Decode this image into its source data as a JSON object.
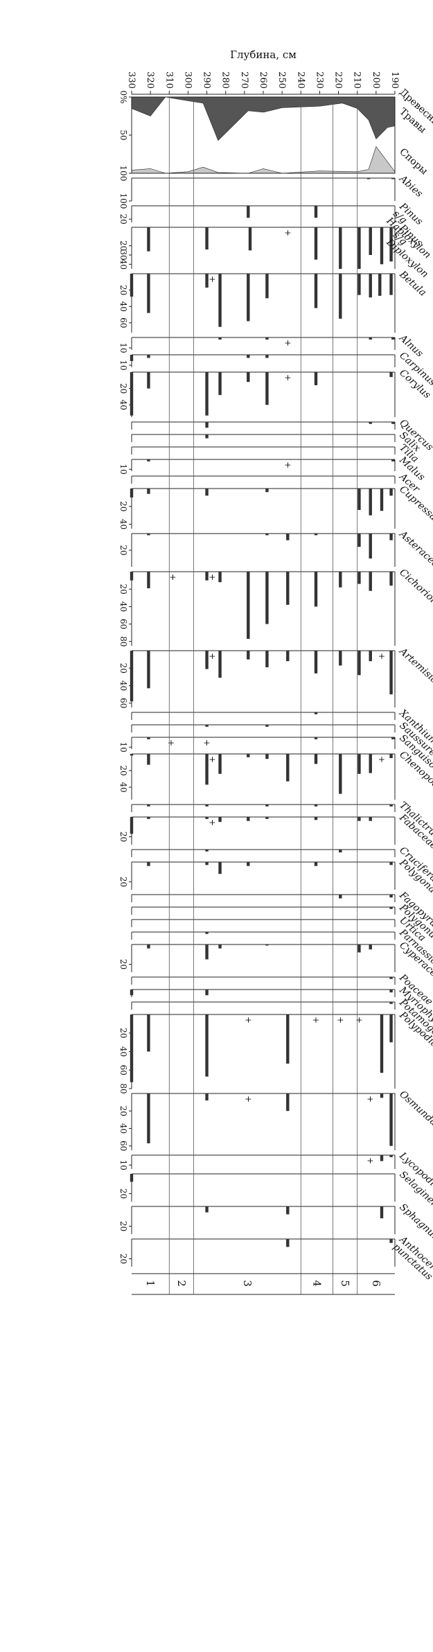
{
  "chart_data": {
    "type": "bar",
    "orientation": "depth-up-rotated",
    "ylabel": "Глубина, см",
    "depth_range": [
      190,
      330
    ],
    "depth_ticks": [
      190,
      200,
      210,
      220,
      230,
      240,
      250,
      260,
      270,
      280,
      290,
      300,
      310,
      320,
      330
    ],
    "zones": [
      {
        "label": "6",
        "from": 190,
        "to": 210
      },
      {
        "label": "5",
        "from": 210,
        "to": 223
      },
      {
        "label": "4",
        "from": 223,
        "to": 240
      },
      {
        "label": "3",
        "from": 240,
        "to": 297
      },
      {
        "label": "2",
        "from": 297,
        "to": 310
      },
      {
        "label": "1",
        "from": 310,
        "to": 330
      }
    ],
    "summary": {
      "labels": [
        "Древесные",
        "Травы",
        "Споры"
      ],
      "ticks": [
        "0%",
        "50",
        "100"
      ],
      "trees_boundary": [
        [
          190,
          38
        ],
        [
          194,
          40
        ],
        [
          200,
          55
        ],
        [
          204,
          30
        ],
        [
          210,
          15
        ],
        [
          218,
          8
        ],
        [
          230,
          12
        ],
        [
          250,
          14
        ],
        [
          260,
          20
        ],
        [
          268,
          18
        ],
        [
          284,
          57
        ],
        [
          292,
          8
        ],
        [
          300,
          5
        ],
        [
          312,
          0
        ],
        [
          320,
          25
        ],
        [
          330,
          15
        ]
      ],
      "herbs_boundary": [
        [
          190,
          98
        ],
        [
          200,
          65
        ],
        [
          204,
          95
        ],
        [
          210,
          98
        ],
        [
          230,
          97
        ],
        [
          250,
          100
        ],
        [
          260,
          94
        ],
        [
          268,
          100
        ],
        [
          284,
          99
        ],
        [
          292,
          92
        ],
        [
          300,
          98
        ],
        [
          312,
          100
        ],
        [
          320,
          94
        ],
        [
          330,
          96
        ]
      ]
    },
    "taxa": [
      {
        "name": "Abies",
        "max": 100,
        "ticks": [
          100
        ],
        "width": 33,
        "values": [
          [
            191,
            4
          ],
          [
            204,
            4
          ]
        ]
      },
      {
        "name": "Pinus s/g Haploxylon",
        "max": 25,
        "ticks": [
          20
        ],
        "width": 24,
        "values": [
          [
            232,
            18
          ],
          [
            268,
            18
          ]
        ]
      },
      {
        "name": "Pinus s/g Diploxylon",
        "max": 45,
        "ticks": [
          20,
          30,
          40
        ],
        "width": 60,
        "values": [
          [
            192,
            37
          ],
          [
            197,
            40
          ],
          [
            203,
            30
          ],
          [
            209,
            45
          ],
          [
            219,
            45
          ],
          [
            232,
            35
          ],
          [
            267,
            25
          ],
          [
            290,
            24
          ],
          [
            321,
            26
          ]
        ],
        "plus": [
          247
        ]
      },
      {
        "name": "Betula",
        "max": 72,
        "ticks": [
          20,
          40,
          60
        ],
        "width": 85,
        "values": [
          [
            192,
            26
          ],
          [
            198,
            27
          ],
          [
            203,
            29
          ],
          [
            209,
            26
          ],
          [
            219,
            55
          ],
          [
            232,
            42
          ],
          [
            258,
            30
          ],
          [
            268,
            58
          ],
          [
            283,
            65
          ],
          [
            290,
            17
          ],
          [
            321,
            48
          ],
          [
            330,
            28
          ]
        ],
        "plus": [
          287
        ]
      },
      {
        "name": "Alnus",
        "max": 12,
        "ticks": [
          10
        ],
        "width": 18,
        "values": [
          [
            191,
            2
          ],
          [
            203,
            2
          ],
          [
            258,
            2
          ],
          [
            283,
            2
          ]
        ],
        "plus": [
          247
        ]
      },
      {
        "name": "Carpinus",
        "max": 12,
        "ticks": [
          10
        ],
        "width": 18,
        "values": [
          [
            258,
            3
          ],
          [
            268,
            3
          ],
          [
            321,
            3
          ],
          [
            330,
            6
          ]
        ],
        "plus": []
      },
      {
        "name": "Corylus",
        "max": 55,
        "ticks": [
          20,
          40
        ],
        "width": 65,
        "values": [
          [
            192,
            6
          ],
          [
            232,
            16
          ],
          [
            258,
            40
          ],
          [
            268,
            12
          ],
          [
            283,
            28
          ],
          [
            290,
            53
          ],
          [
            321,
            20
          ],
          [
            330,
            53
          ]
        ],
        "plus": [
          247
        ]
      },
      {
        "name": "Quercus",
        "max": 8,
        "ticks": [],
        "width": 11,
        "values": [
          [
            191,
            2
          ],
          [
            203,
            2
          ],
          [
            290,
            6
          ]
        ]
      },
      {
        "name": "Salix",
        "max": 8,
        "ticks": [],
        "width": 11,
        "values": [
          [
            290,
            4
          ]
        ]
      },
      {
        "name": "Tilia",
        "max": 8,
        "ticks": [],
        "width": 11,
        "values": []
      },
      {
        "name": "Malus",
        "max": 12,
        "ticks": [
          10
        ],
        "width": 17,
        "values": [
          [
            191,
            2
          ],
          [
            321,
            2
          ]
        ],
        "plus": [
          247
        ]
      },
      {
        "name": "Acer",
        "max": 8,
        "ticks": [],
        "width": 11,
        "values": []
      },
      {
        "name": "Cupressaceae",
        "max": 45,
        "ticks": [
          20,
          40
        ],
        "width": 58,
        "values": [
          [
            192,
            8
          ],
          [
            197,
            25
          ],
          [
            203,
            30
          ],
          [
            209,
            24
          ],
          [
            258,
            4
          ],
          [
            290,
            8
          ],
          [
            321,
            6
          ],
          [
            330,
            10
          ]
        ],
        "plus": []
      },
      {
        "name": "Asteraceae",
        "max": 40,
        "ticks": [
          20
        ],
        "width": 48,
        "values": [
          [
            192,
            8
          ],
          [
            203,
            30
          ],
          [
            209,
            16
          ],
          [
            232,
            2
          ],
          [
            247,
            8
          ],
          [
            258,
            2
          ],
          [
            321,
            2
          ]
        ]
      },
      {
        "name": "Cichorioideae",
        "max": 85,
        "ticks": [
          20,
          40,
          60,
          80
        ],
        "width": 107,
        "values": [
          [
            192,
            16
          ],
          [
            203,
            22
          ],
          [
            209,
            14
          ],
          [
            219,
            18
          ],
          [
            232,
            40
          ],
          [
            247,
            38
          ],
          [
            258,
            60
          ],
          [
            268,
            77
          ],
          [
            283,
            12
          ],
          [
            290,
            10
          ],
          [
            321,
            19
          ],
          [
            330,
            10
          ]
        ],
        "plus": [
          287,
          308
        ]
      },
      {
        "name": "Artemisia",
        "max": 65,
        "ticks": [
          20,
          40,
          60
        ],
        "width": 82,
        "values": [
          [
            192,
            50
          ],
          [
            203,
            12
          ],
          [
            209,
            28
          ],
          [
            219,
            17
          ],
          [
            232,
            26
          ],
          [
            247,
            12
          ],
          [
            258,
            19
          ],
          [
            268,
            10
          ],
          [
            283,
            31
          ],
          [
            290,
            21
          ],
          [
            321,
            43
          ],
          [
            330,
            58
          ]
        ],
        "plus": [
          197,
          287
        ]
      },
      {
        "name": "Xanthium",
        "max": 8,
        "ticks": [],
        "width": 11,
        "values": [
          [
            232,
            2
          ]
        ]
      },
      {
        "name": "Saussurea",
        "max": 8,
        "ticks": [],
        "width": 11,
        "values": [
          [
            258,
            2
          ],
          [
            290,
            2
          ]
        ]
      },
      {
        "name": "Sanguisorba",
        "max": 12,
        "ticks": [
          10
        ],
        "width": 17,
        "values": [
          [
            191,
            2
          ],
          [
            232,
            2
          ],
          [
            321,
            2
          ]
        ],
        "plus": [
          290,
          309
        ]
      },
      {
        "name": "Chenopodiaceae",
        "max": 55,
        "ticks": [
          20,
          40
        ],
        "width": 66,
        "values": [
          [
            192,
            5
          ],
          [
            203,
            23
          ],
          [
            209,
            24
          ],
          [
            219,
            48
          ],
          [
            232,
            12
          ],
          [
            247,
            33
          ],
          [
            258,
            6
          ],
          [
            268,
            4
          ],
          [
            283,
            24
          ],
          [
            290,
            37
          ],
          [
            321,
            13
          ],
          [
            330,
            2
          ]
        ],
        "plus": [
          197,
          287
        ]
      },
      {
        "name": "Thalictrum",
        "max": 8,
        "ticks": [],
        "width": 11,
        "values": [
          [
            192,
            2
          ],
          [
            232,
            2
          ],
          [
            258,
            2
          ],
          [
            290,
            2
          ],
          [
            321,
            2
          ]
        ]
      },
      {
        "name": "Fabaceae",
        "max": 28,
        "ticks": [
          20
        ],
        "width": 40,
        "values": [
          [
            203,
            4
          ],
          [
            209,
            4
          ],
          [
            232,
            3
          ],
          [
            258,
            2
          ],
          [
            268,
            4
          ],
          [
            283,
            5
          ],
          [
            290,
            2
          ],
          [
            321,
            2
          ],
          [
            330,
            17
          ]
        ],
        "plus": [
          287
        ]
      },
      {
        "name": "Cruciferae",
        "max": 8,
        "ticks": [],
        "width": 11,
        "values": [
          [
            219,
            3
          ],
          [
            290,
            2
          ]
        ]
      },
      {
        "name": "Polygonaceae",
        "max": 28,
        "ticks": [
          20
        ],
        "width": 40,
        "values": [
          [
            192,
            3
          ],
          [
            232,
            4
          ],
          [
            268,
            4
          ],
          [
            283,
            12
          ],
          [
            290,
            3
          ],
          [
            321,
            4
          ]
        ]
      },
      {
        "name": "Fagopyrum",
        "max": 8,
        "ticks": [],
        "width": 11,
        "values": [
          [
            192,
            3
          ],
          [
            219,
            4
          ]
        ]
      },
      {
        "name": "Polygonum",
        "max": 8,
        "ticks": [],
        "width": 11,
        "values": [
          [
            192,
            2
          ]
        ]
      },
      {
        "name": "Urtica",
        "max": 8,
        "ticks": [],
        "width": 11,
        "values": []
      },
      {
        "name": "Parnassia",
        "max": 8,
        "ticks": [],
        "width": 11,
        "values": [
          [
            290,
            2
          ]
        ]
      },
      {
        "name": "Cyperaceae",
        "max": 28,
        "ticks": [
          20
        ],
        "width": 40,
        "values": [
          [
            203,
            5
          ],
          [
            209,
            8
          ],
          [
            258,
            1
          ],
          [
            283,
            4
          ],
          [
            290,
            15
          ],
          [
            321,
            4
          ]
        ]
      },
      {
        "name": "Poaceae",
        "max": 8,
        "ticks": [],
        "width": 11,
        "values": [
          [
            192,
            2
          ]
        ]
      },
      {
        "name": "Myriophyllum",
        "max": 8,
        "ticks": [],
        "width": 11,
        "values": [
          [
            192,
            3
          ],
          [
            290,
            6
          ],
          [
            330,
            6
          ]
        ]
      },
      {
        "name": "Potamogeton",
        "max": 8,
        "ticks": [],
        "width": 11,
        "values": [
          [
            192,
            2
          ]
        ]
      },
      {
        "name": "Polypodiaceae",
        "max": 80,
        "ticks": [
          20,
          40,
          60,
          80
        ],
        "width": 107,
        "values": [
          [
            192,
            30
          ],
          [
            197,
            63
          ],
          [
            247,
            53
          ],
          [
            290,
            67
          ],
          [
            321,
            40
          ],
          [
            330,
            73
          ]
        ],
        "plus": [
          209,
          219,
          232,
          268
        ]
      },
      {
        "name": "Osmunda",
        "max": 65,
        "ticks": [
          20,
          40,
          60
        ],
        "width": 82,
        "values": [
          [
            192,
            60
          ],
          [
            197,
            5
          ],
          [
            247,
            20
          ],
          [
            290,
            8
          ],
          [
            321,
            57
          ]
        ],
        "plus": [
          203,
          268
        ]
      },
      {
        "name": "Lycopodium",
        "max": 14,
        "ticks": [
          10
        ],
        "width": 20,
        "values": [
          [
            192,
            2
          ],
          [
            197,
            6
          ]
        ],
        "plus": [
          203
        ]
      },
      {
        "name": "Selaginella",
        "max": 28,
        "ticks": [
          20
        ],
        "width": 40,
        "values": [
          [
            330,
            8
          ]
        ]
      },
      {
        "name": "Sphagnum",
        "max": 28,
        "ticks": [
          20
        ],
        "width": 40,
        "values": [
          [
            197,
            12
          ],
          [
            247,
            8
          ],
          [
            290,
            6
          ]
        ]
      },
      {
        "name": "Anthoceros punctatus",
        "max": 28,
        "ticks": [
          20
        ],
        "width": 40,
        "values": [
          [
            192,
            4
          ],
          [
            247,
            8
          ]
        ]
      }
    ]
  }
}
